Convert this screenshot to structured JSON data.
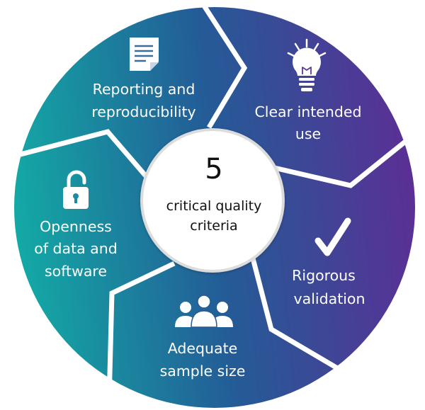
{
  "colors": {
    "teal": "#13aaa5",
    "blue": "#235c97",
    "purple": "#5b2f95",
    "divider": "#ffffff",
    "center_fill": "#ffffff",
    "center_ring": "#dcdcdc",
    "text": "#111111"
  },
  "center": {
    "number": "5",
    "line1": "critical quality",
    "line2": "criteria"
  },
  "segments": [
    {
      "id": "reporting",
      "icon": "document-icon",
      "line1": "Reporting and",
      "line2": "reproducibility"
    },
    {
      "id": "intended-use",
      "icon": "lightbulb-icon",
      "line1": "Clear intended",
      "line2": "use"
    },
    {
      "id": "validation",
      "icon": "checkmark-icon",
      "line1": "Rigorous",
      "line2": "validation"
    },
    {
      "id": "sample-size",
      "icon": "people-icon",
      "line1": "Adequate",
      "line2": "sample size"
    },
    {
      "id": "openness",
      "icon": "unlocked-padlock-icon",
      "line1": "Openness",
      "line2": "of data and",
      "line3": "software"
    }
  ]
}
